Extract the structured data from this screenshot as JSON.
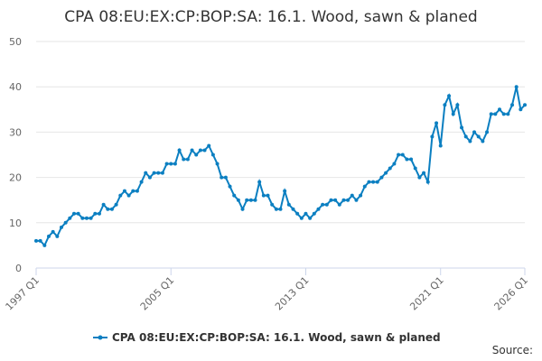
{
  "chart_data": {
    "type": "line",
    "title": "CPA 08:EU:EX:CP:BOP:SA: 16.1. Wood, sawn & planed",
    "source": "Source:",
    "categories": [
      "1997 Q1",
      null,
      null,
      null,
      null,
      null,
      null,
      null,
      null,
      null,
      null,
      null,
      null,
      null,
      null,
      null,
      null,
      null,
      null,
      null,
      null,
      null,
      null,
      null,
      null,
      null,
      null,
      null,
      null,
      null,
      null,
      null,
      "2005 Q1",
      null,
      null,
      null,
      null,
      null,
      null,
      null,
      null,
      null,
      null,
      null,
      null,
      null,
      null,
      null,
      null,
      null,
      null,
      null,
      null,
      null,
      null,
      null,
      null,
      null,
      null,
      null,
      null,
      null,
      null,
      null,
      "2013 Q1",
      null,
      null,
      null,
      null,
      null,
      null,
      null,
      null,
      null,
      null,
      null,
      null,
      null,
      null,
      null,
      null,
      null,
      null,
      null,
      null,
      null,
      null,
      null,
      null,
      null,
      null,
      null,
      null,
      null,
      null,
      null,
      "2021 Q1",
      null,
      null,
      null,
      null,
      null,
      null,
      null,
      null,
      null,
      null,
      null,
      null,
      null,
      null,
      null,
      null,
      null,
      null,
      null,
      "2026 Q1"
    ],
    "series": [
      {
        "name": "CPA 08:EU:EX:CP:BOP:SA: 16.1. Wood, sawn & planed",
        "color": "#0b7fc1",
        "values": [
          6,
          6,
          5,
          7,
          8,
          7,
          9,
          10,
          11,
          12,
          12,
          11,
          11,
          11,
          12,
          12,
          14,
          13,
          13,
          14,
          16,
          17,
          16,
          17,
          17,
          19,
          21,
          20,
          21,
          21,
          21,
          23,
          23,
          23,
          26,
          24,
          24,
          26,
          25,
          26,
          26,
          27,
          25,
          23,
          20,
          20,
          18,
          16,
          15,
          13,
          15,
          15,
          15,
          19,
          16,
          16,
          14,
          13,
          13,
          17,
          14,
          13,
          12,
          11,
          12,
          11,
          12,
          13,
          14,
          14,
          15,
          15,
          14,
          15,
          15,
          16,
          15,
          16,
          18,
          19,
          19,
          19,
          20,
          21,
          22,
          23,
          25,
          25,
          24,
          24,
          22,
          20,
          21,
          19,
          29,
          32,
          27,
          36,
          38,
          34,
          36,
          31,
          29,
          28,
          30,
          29,
          28,
          30,
          34,
          34,
          35,
          34,
          34,
          36,
          40,
          35,
          36
        ]
      }
    ],
    "ylim": [
      0,
      50
    ],
    "yticks": [
      0,
      10,
      20,
      30,
      40,
      50
    ],
    "grid": true
  }
}
